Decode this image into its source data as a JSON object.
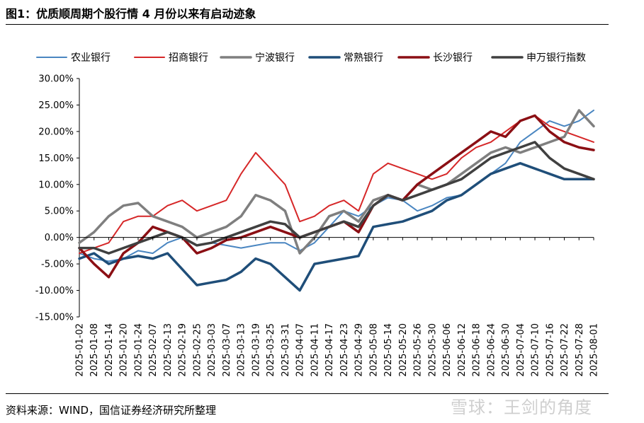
{
  "header": {
    "title": "图1：优质顺周期个股行情 4 月份以来有启动迹象"
  },
  "footer": {
    "source": "资料来源：WIND，国信证券经济研究所整理",
    "watermark": "雪球：王剑的角度"
  },
  "chart_data": {
    "type": "line",
    "title": "",
    "xlabel": "",
    "ylabel": "",
    "ylim": [
      -0.15,
      0.3
    ],
    "yticks": [
      -0.15,
      -0.1,
      -0.05,
      0.0,
      0.05,
      0.1,
      0.15,
      0.2,
      0.25,
      0.3
    ],
    "ytick_labels": [
      "-15.00%",
      "-10.00%",
      "-5.00%",
      "0.00%",
      "5.00%",
      "10.00%",
      "15.00%",
      "20.00%",
      "25.00%",
      "30.00%"
    ],
    "grid": false,
    "legend_position": "top",
    "x_dates": [
      "2025-01-02",
      "2025-01-08",
      "2025-01-14",
      "2025-01-20",
      "2025-01-24",
      "2025-02-07",
      "2025-02-13",
      "2025-02-19",
      "2025-02-25",
      "2025-03-03",
      "2025-03-07",
      "2025-03-13",
      "2025-03-19",
      "2025-03-25",
      "2025-03-31",
      "2025-04-07",
      "2025-04-11",
      "2025-04-17",
      "2025-04-23",
      "2025-04-29",
      "2025-05-08",
      "2025-05-14",
      "2025-05-20",
      "2025-05-26",
      "2025-05-30",
      "2025-06-06",
      "2025-06-12",
      "2025-06-18",
      "2025-06-24",
      "2025-06-30",
      "2025-07-04",
      "2025-07-10",
      "2025-07-16",
      "2025-07-22",
      "2025-07-28",
      "2025-08-01"
    ],
    "series": [
      {
        "name": "农业银行",
        "color": "#4a86c1",
        "width": 2,
        "values": [
          -0.03,
          -0.04,
          -0.045,
          -0.04,
          -0.025,
          -0.03,
          -0.01,
          0.0,
          -0.015,
          -0.01,
          -0.015,
          -0.02,
          -0.015,
          -0.01,
          -0.01,
          -0.025,
          -0.01,
          0.02,
          0.05,
          0.04,
          0.06,
          0.075,
          0.07,
          0.05,
          0.06,
          0.075,
          0.08,
          0.1,
          0.12,
          0.14,
          0.18,
          0.2,
          0.22,
          0.21,
          0.22,
          0.24
        ]
      },
      {
        "name": "招商银行",
        "color": "#d62728",
        "width": 2,
        "values": [
          -0.03,
          -0.02,
          -0.01,
          0.03,
          0.04,
          0.04,
          0.06,
          0.07,
          0.05,
          0.06,
          0.07,
          0.12,
          0.16,
          0.13,
          0.1,
          0.03,
          0.04,
          0.06,
          0.07,
          0.05,
          0.12,
          0.14,
          0.13,
          0.12,
          0.11,
          0.12,
          0.15,
          0.17,
          0.18,
          0.2,
          0.22,
          0.23,
          0.21,
          0.2,
          0.19,
          0.18
        ]
      },
      {
        "name": "宁波银行",
        "color": "#7f7f7f",
        "width": 3.5,
        "values": [
          -0.01,
          0.01,
          0.04,
          0.06,
          0.065,
          0.04,
          0.03,
          0.02,
          0.0,
          0.01,
          0.02,
          0.04,
          0.08,
          0.07,
          0.05,
          -0.03,
          0.0,
          0.04,
          0.05,
          0.03,
          0.07,
          0.08,
          0.07,
          0.1,
          0.09,
          0.1,
          0.12,
          0.14,
          0.16,
          0.17,
          0.16,
          0.17,
          0.18,
          0.19,
          0.24,
          0.21
        ]
      },
      {
        "name": "常熟银行",
        "color": "#1f4e79",
        "width": 3.5,
        "values": [
          -0.04,
          -0.03,
          -0.05,
          -0.04,
          -0.035,
          -0.04,
          -0.03,
          -0.06,
          -0.09,
          -0.085,
          -0.08,
          -0.065,
          -0.04,
          -0.05,
          -0.075,
          -0.1,
          -0.05,
          -0.045,
          -0.04,
          -0.035,
          0.02,
          0.025,
          0.03,
          0.04,
          0.05,
          0.07,
          0.08,
          0.1,
          0.12,
          0.13,
          0.14,
          0.13,
          0.12,
          0.11,
          0.11,
          0.11
        ]
      },
      {
        "name": "长沙银行",
        "color": "#8b0f14",
        "width": 3.5,
        "values": [
          -0.02,
          -0.05,
          -0.075,
          -0.03,
          -0.01,
          0.02,
          0.01,
          0.0,
          -0.03,
          -0.02,
          -0.005,
          0.0,
          0.01,
          0.02,
          0.01,
          0.0,
          0.01,
          0.02,
          0.03,
          0.01,
          0.06,
          0.08,
          0.07,
          0.1,
          0.12,
          0.14,
          0.16,
          0.18,
          0.2,
          0.19,
          0.22,
          0.23,
          0.2,
          0.18,
          0.17,
          0.165
        ]
      },
      {
        "name": "申万银行指数",
        "color": "#404040",
        "width": 3.5,
        "values": [
          -0.02,
          -0.02,
          -0.03,
          -0.02,
          -0.01,
          0.0,
          0.01,
          0.0,
          -0.015,
          -0.01,
          0.0,
          0.01,
          0.02,
          0.03,
          0.025,
          0.0,
          0.01,
          0.02,
          0.03,
          0.02,
          0.06,
          0.08,
          0.07,
          0.08,
          0.09,
          0.1,
          0.11,
          0.13,
          0.15,
          0.16,
          0.17,
          0.18,
          0.15,
          0.13,
          0.12,
          0.11
        ]
      }
    ]
  }
}
